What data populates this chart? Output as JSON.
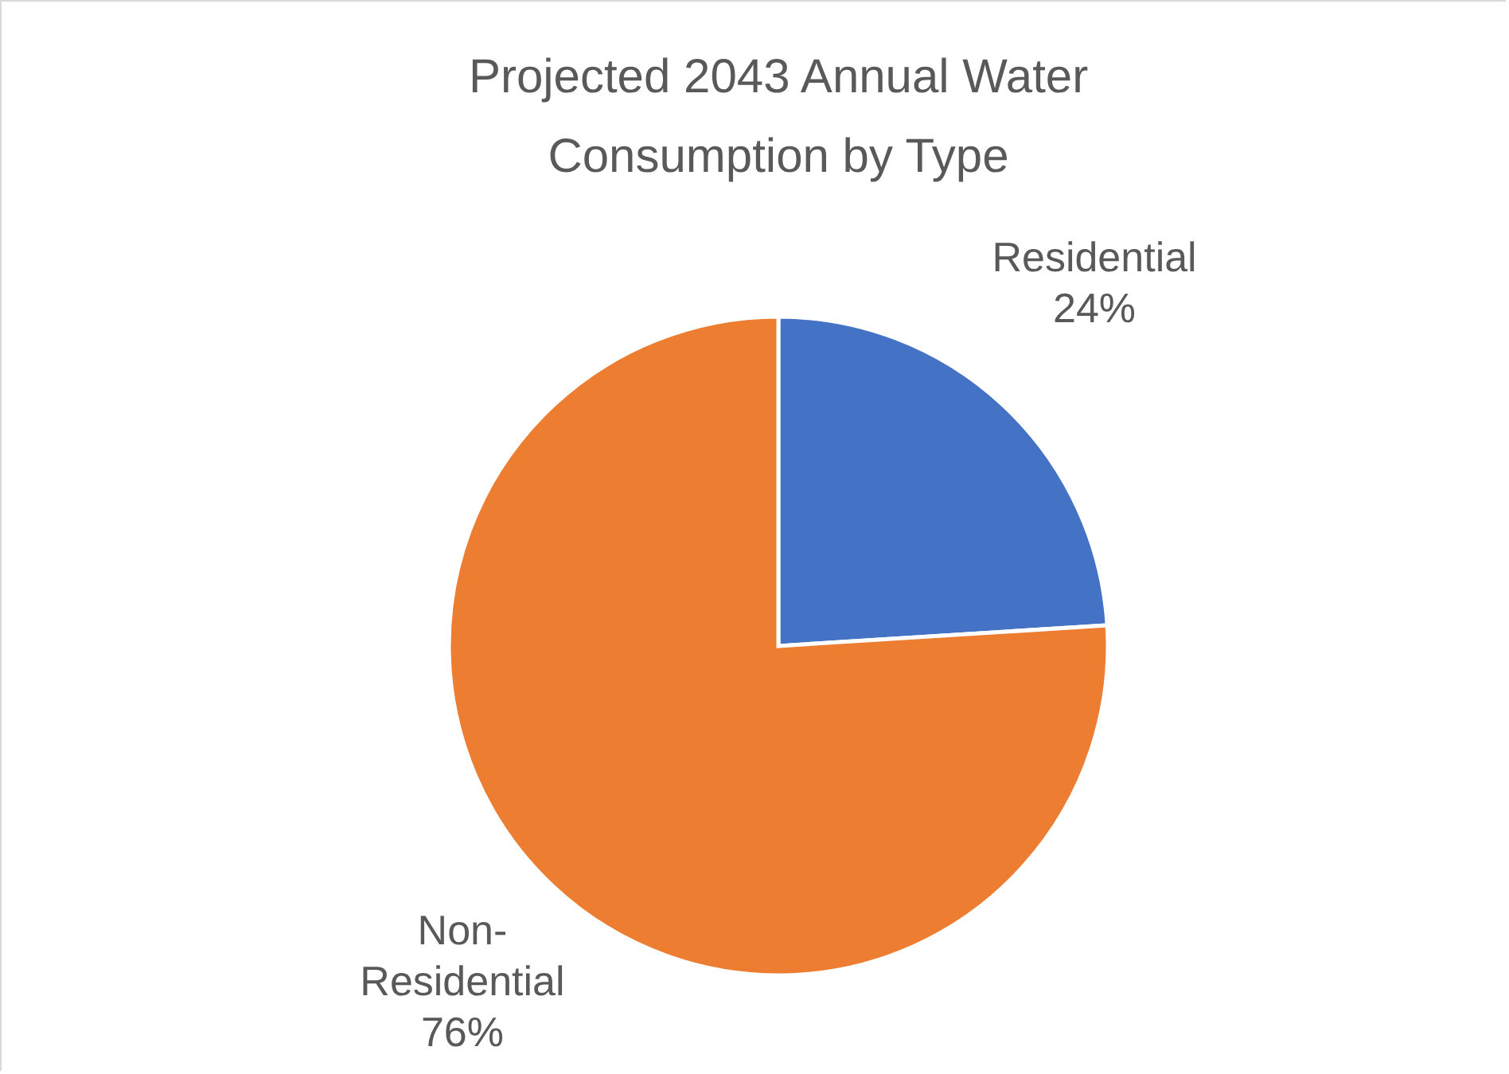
{
  "chart_data": {
    "type": "pie",
    "title": "Projected 2043 Annual Water Consumption by Type",
    "categories": [
      "Residential",
      "Non-Residential"
    ],
    "values": [
      24,
      76
    ],
    "value_labels": [
      "24%",
      "76%"
    ],
    "colors": [
      "#4472c4",
      "#ed7d31"
    ],
    "legend": false
  }
}
